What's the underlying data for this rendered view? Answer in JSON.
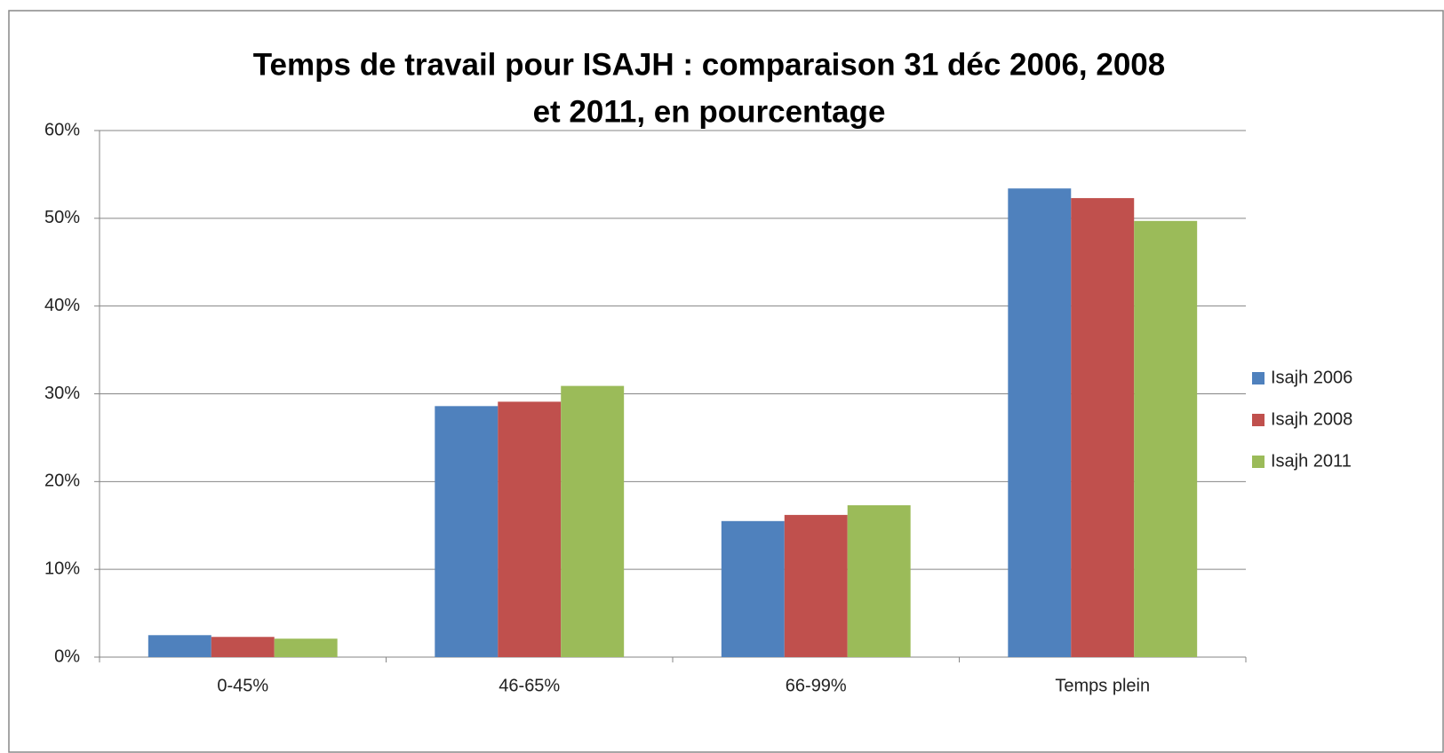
{
  "chart_data": {
    "type": "bar",
    "title": [
      "Temps de travail pour ISAJH : comparaison 31 déc 2006, 2008",
      "et 2011, en pourcentage"
    ],
    "categories": [
      "0-45%",
      "46-65%",
      "66-99%",
      "Temps plein"
    ],
    "series": [
      {
        "name": "Isajh 2006",
        "color": "#4f81bd",
        "values": [
          2.5,
          28.6,
          15.5,
          53.4
        ]
      },
      {
        "name": "Isajh 2008",
        "color": "#c0504d",
        "values": [
          2.3,
          29.1,
          16.2,
          52.3
        ]
      },
      {
        "name": "Isajh 2011",
        "color": "#9bbb59",
        "values": [
          2.1,
          30.9,
          17.3,
          49.7
        ]
      }
    ],
    "ylim": [
      0,
      60
    ],
    "yticks": [
      {
        "value": 0,
        "label": "0%"
      },
      {
        "value": 10,
        "label": "10%"
      },
      {
        "value": 20,
        "label": "20%"
      },
      {
        "value": 30,
        "label": "30%"
      },
      {
        "value": 40,
        "label": "40%"
      },
      {
        "value": 50,
        "label": "50%"
      },
      {
        "value": 60,
        "label": "60%"
      }
    ],
    "grid": true,
    "legend": "right"
  }
}
